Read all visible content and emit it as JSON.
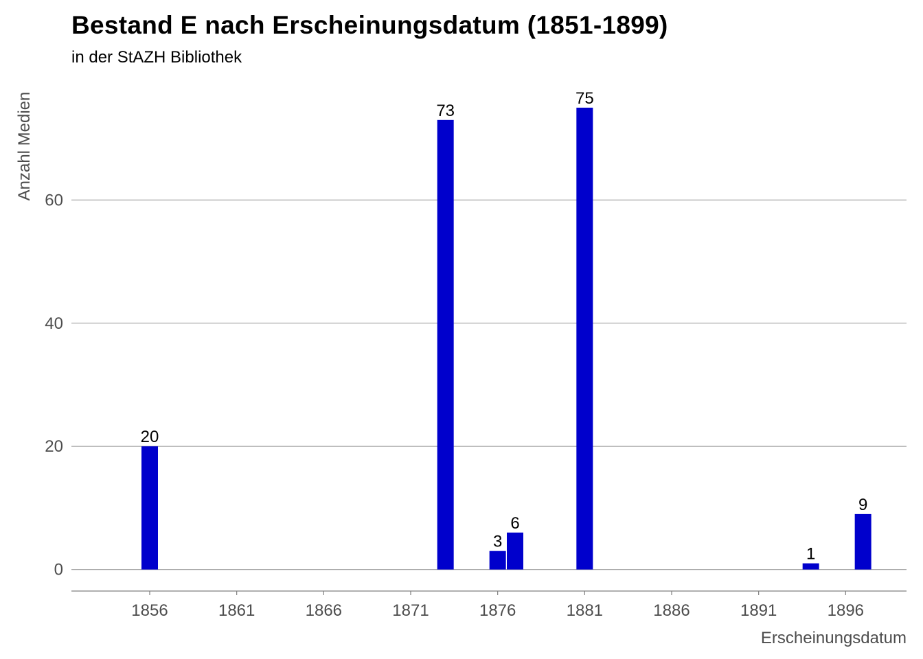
{
  "chart_data": {
    "type": "bar",
    "title": "Bestand E nach Erscheinungsdatum (1851-1899)",
    "subtitle": "in der StAZH Bibliothek",
    "xlabel": "Erscheinungsdatum",
    "ylabel": "Anzahl Medien",
    "x": [
      1856,
      1873,
      1876,
      1877,
      1881,
      1894,
      1897
    ],
    "values": [
      20,
      73,
      3,
      6,
      75,
      1,
      9
    ],
    "data_labels": [
      "20",
      "73",
      "3",
      "6",
      "75",
      "1",
      "9"
    ],
    "xlim": [
      1851.5,
      1899.5
    ],
    "ylim": [
      -3.5,
      80
    ],
    "x_ticks": [
      1856,
      1861,
      1866,
      1871,
      1876,
      1881,
      1886,
      1891,
      1896
    ],
    "x_tick_labels": [
      "1856",
      "1861",
      "1866",
      "1871",
      "1876",
      "1881",
      "1886",
      "1891",
      "1896"
    ],
    "y_ticks": [
      0,
      20,
      40,
      60
    ],
    "y_tick_labels": [
      "0",
      "20",
      "40",
      "60"
    ],
    "grid": "horizontal",
    "legend": "none",
    "bar_color": "#0000CC",
    "grid_color": "#a6a6a6",
    "axis_color": "#7f7f7f"
  }
}
